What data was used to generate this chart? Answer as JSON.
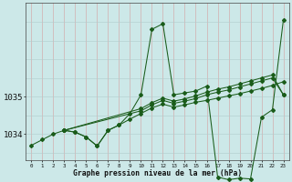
{
  "title": "Graphe pression niveau de la mer (hPa)",
  "bg_color": "#cce8e8",
  "line_color": "#1a5c1a",
  "xlim": [
    -0.5,
    23.5
  ],
  "ylim": [
    1033.3,
    1037.5
  ],
  "yticks": [
    1034,
    1035
  ],
  "xticks": [
    0,
    1,
    2,
    3,
    4,
    5,
    6,
    7,
    8,
    9,
    10,
    11,
    12,
    13,
    14,
    15,
    16,
    17,
    18,
    19,
    20,
    21,
    22,
    23
  ],
  "seriesA_x": [
    0,
    1,
    2,
    3,
    4,
    5,
    6,
    7,
    8,
    9,
    10,
    11,
    12,
    13,
    14,
    15,
    16,
    17,
    18,
    19,
    20,
    21,
    22,
    23
  ],
  "seriesA_y": [
    1033.7,
    1033.85,
    1034.0,
    1034.1,
    1034.05,
    1033.92,
    1033.68,
    1034.1,
    1034.24,
    1034.4,
    1034.55,
    1034.7,
    1034.8,
    1034.72,
    1034.78,
    1034.85,
    1034.9,
    1034.96,
    1035.02,
    1035.08,
    1035.15,
    1035.22,
    1035.3,
    1035.4
  ],
  "seriesB_x": [
    3,
    4,
    5,
    6,
    7,
    8,
    9,
    10,
    11,
    12,
    13,
    14,
    15,
    16,
    17,
    18,
    19,
    20,
    21,
    22,
    23
  ],
  "seriesB_y": [
    1034.1,
    1034.05,
    1033.92,
    1033.68,
    1034.1,
    1034.24,
    1034.55,
    1035.05,
    1036.8,
    1036.95,
    1035.05,
    1035.1,
    1035.15,
    1035.28,
    1032.85,
    1032.78,
    1032.82,
    1032.8,
    1034.45,
    1034.65,
    1037.05
  ],
  "seriesC_x": [
    3,
    10,
    11,
    12,
    13,
    14,
    15,
    16,
    17,
    18,
    19,
    20,
    21,
    22,
    23
  ],
  "seriesC_y": [
    1034.1,
    1034.62,
    1034.78,
    1034.9,
    1034.82,
    1034.88,
    1034.95,
    1035.05,
    1035.12,
    1035.18,
    1035.26,
    1035.34,
    1035.42,
    1035.5,
    1035.05
  ],
  "seriesD_x": [
    3,
    10,
    11,
    12,
    13,
    14,
    15,
    16,
    17,
    18,
    19,
    20,
    21,
    22,
    23
  ],
  "seriesD_y": [
    1034.1,
    1034.68,
    1034.84,
    1034.96,
    1034.88,
    1034.94,
    1035.02,
    1035.12,
    1035.2,
    1035.26,
    1035.34,
    1035.42,
    1035.5,
    1035.58,
    1035.05
  ]
}
